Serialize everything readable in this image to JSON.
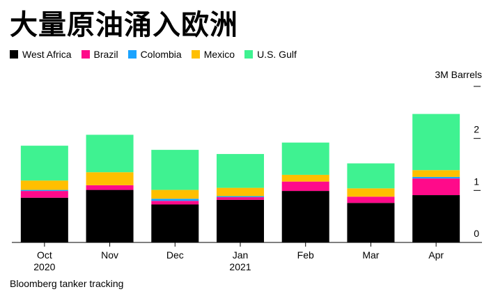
{
  "title": "大量原油涌入欧洲",
  "source": "Bloomberg tanker tracking",
  "chart_data": {
    "type": "bar",
    "stacked": true,
    "categories": [
      {
        "line1": "Oct",
        "line2": "2020"
      },
      {
        "line1": "Nov",
        "line2": ""
      },
      {
        "line1": "Dec",
        "line2": ""
      },
      {
        "line1": "Jan",
        "line2": "2021"
      },
      {
        "line1": "Feb",
        "line2": ""
      },
      {
        "line1": "Mar",
        "line2": ""
      },
      {
        "line1": "Apr",
        "line2": ""
      }
    ],
    "series": [
      {
        "name": "West Africa",
        "color": "#000000",
        "values": [
          0.86,
          1.01,
          0.73,
          0.82,
          0.99,
          0.76,
          0.91
        ]
      },
      {
        "name": "Brazil",
        "color": "#ff0a8a",
        "values": [
          0.13,
          0.09,
          0.07,
          0.05,
          0.18,
          0.12,
          0.32
        ]
      },
      {
        "name": "Colombia",
        "color": "#1aa3ff",
        "values": [
          0.02,
          0.0,
          0.04,
          0.02,
          0.0,
          0.0,
          0.03
        ]
      },
      {
        "name": "Mexico",
        "color": "#ffbf00",
        "values": [
          0.18,
          0.25,
          0.17,
          0.16,
          0.13,
          0.16,
          0.13
        ]
      },
      {
        "name": "U.S. Gulf",
        "color": "#3ff291",
        "values": [
          0.67,
          0.72,
          0.77,
          0.65,
          0.62,
          0.48,
          1.08
        ]
      }
    ],
    "ylabel": "3M Barrels",
    "ytick_labels": [
      "0",
      "1",
      "2"
    ],
    "yticks": [
      0,
      1,
      2,
      3
    ],
    "ylim": [
      0,
      3
    ],
    "grid": false,
    "legend_position": "top-left"
  }
}
